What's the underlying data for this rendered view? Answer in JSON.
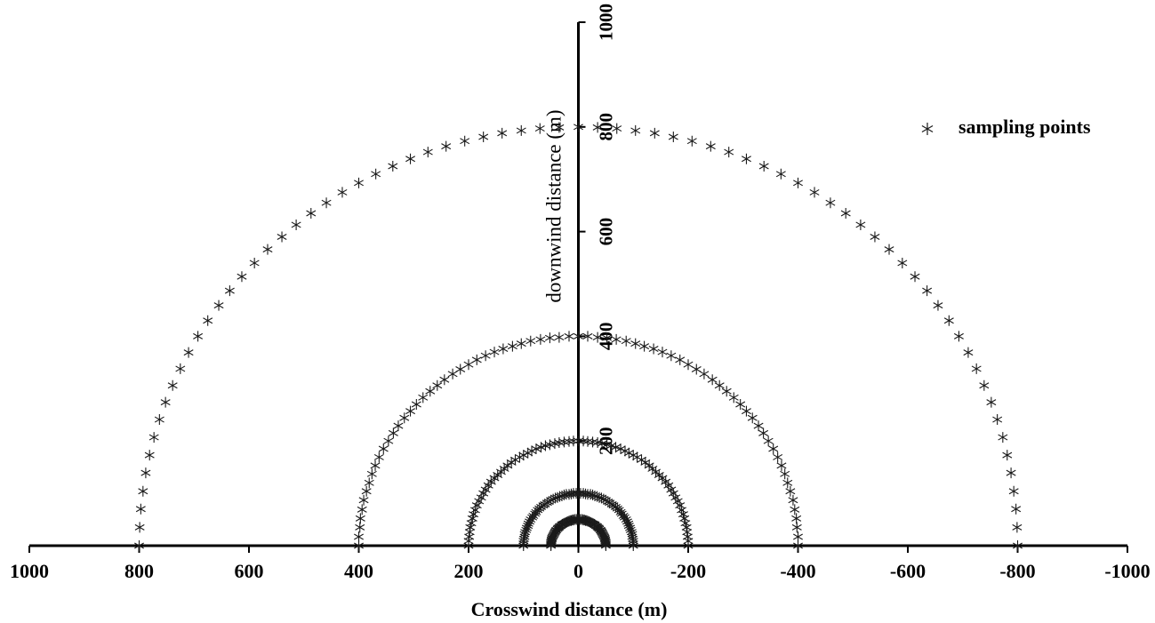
{
  "chart_data": {
    "type": "scatter",
    "xlabel": "Crosswind distance (m)",
    "ylabel": "downwind distance (m)",
    "xlim": [
      1000,
      -1000
    ],
    "ylim": [
      0,
      1000
    ],
    "xticks": [
      1000,
      800,
      600,
      400,
      200,
      0,
      -200,
      -400,
      -600,
      -800,
      -1000
    ],
    "yticks": [
      200,
      400,
      600,
      800,
      1000
    ],
    "legend": "upper right",
    "series": [
      {
        "name": "sampling points",
        "color": "#1a1a1a",
        "marker": "asterisk",
        "x": [
          800,
          799,
          797,
          793,
          788,
          781,
          773,
          763,
          752,
          739,
          725,
          710,
          693,
          675,
          655,
          635,
          613,
          590,
          566,
          540,
          514,
          487,
          459,
          430,
          400,
          369,
          338,
          306,
          274,
          241,
          207,
          173,
          139,
          104,
          70,
          35,
          0,
          -35,
          -70,
          -104,
          -139,
          -173,
          -207,
          -241,
          -274,
          -306,
          -338,
          -369,
          -400,
          -430,
          -459,
          -487,
          -514,
          -540,
          -566,
          -590,
          -613,
          -635,
          -655,
          -675,
          -693,
          -710,
          -725,
          -739,
          -752,
          -763,
          -773,
          -781,
          -788,
          -793,
          -797,
          -799,
          -800,
          400,
          400,
          398,
          397,
          394,
          391,
          386,
          381,
          376,
          370,
          363,
          355,
          346,
          337,
          328,
          317,
          306,
          295,
          283,
          270,
          257,
          244,
          229,
          215,
          200,
          185,
          169,
          153,
          137,
          120,
          104,
          87,
          69,
          52,
          35,
          17,
          0,
          -17,
          -35,
          -52,
          -69,
          -87,
          -104,
          -120,
          -137,
          -153,
          -169,
          -185,
          -200,
          -215,
          -229,
          -244,
          -257,
          -270,
          -283,
          -295,
          -306,
          -317,
          -328,
          -337,
          -346,
          -355,
          -363,
          -370,
          -376,
          -381,
          -386,
          -391,
          -394,
          -397,
          -398,
          -400,
          -400,
          200,
          200,
          199,
          198,
          197,
          195,
          193,
          191,
          188,
          185,
          181,
          177,
          173,
          169,
          164,
          159,
          153,
          147,
          141,
          135,
          129,
          122,
          115,
          107,
          100,
          92,
          85,
          77,
          68,
          60,
          52,
          43,
          35,
          26,
          17,
          9,
          0,
          -9,
          -17,
          -26,
          -35,
          -43,
          -52,
          -60,
          -68,
          -77,
          -85,
          -92,
          -100,
          -107,
          -115,
          -122,
          -129,
          -135,
          -141,
          -147,
          -153,
          -159,
          -164,
          -169,
          -173,
          -177,
          -181,
          -185,
          -188,
          -191,
          -193,
          -195,
          -197,
          -198,
          -199,
          -200,
          -200,
          100,
          100,
          100,
          99,
          98,
          98,
          97,
          95,
          94,
          92,
          91,
          89,
          87,
          84,
          82,
          79,
          77,
          74,
          71,
          68,
          64,
          61,
          57,
          54,
          50,
          46,
          42,
          38,
          34,
          30,
          26,
          22,
          17,
          13,
          9,
          4,
          0,
          -4,
          -9,
          -13,
          -17,
          -22,
          -26,
          -30,
          -34,
          -38,
          -42,
          -46,
          -50,
          -54,
          -57,
          -61,
          -64,
          -68,
          -71,
          -74,
          -77,
          -79,
          -82,
          -84,
          -87,
          -89,
          -91,
          -92,
          -94,
          -95,
          -97,
          -98,
          -98,
          -99,
          -100,
          -100,
          -100,
          50,
          50,
          50,
          50,
          49,
          49,
          48,
          48,
          47,
          46,
          45,
          44,
          43,
          42,
          41,
          40,
          38,
          37,
          35,
          34,
          32,
          30,
          29,
          27,
          25,
          23,
          21,
          19,
          17,
          15,
          13,
          11,
          9,
          7,
          4,
          2,
          0,
          -2,
          -4,
          -7,
          -9,
          -11,
          -13,
          -15,
          -17,
          -19,
          -21,
          -23,
          -25,
          -27,
          -29,
          -30,
          -32,
          -34,
          -35,
          -37,
          -38,
          -40,
          -41,
          -42,
          -43,
          -44,
          -45,
          -46,
          -47,
          -48,
          -48,
          -49,
          -49,
          -50,
          -50,
          -50,
          -50
        ],
        "y": [
          0,
          35,
          70,
          104,
          139,
          173,
          207,
          241,
          274,
          306,
          338,
          369,
          400,
          430,
          459,
          487,
          514,
          540,
          566,
          590,
          613,
          635,
          655,
          675,
          693,
          710,
          725,
          739,
          752,
          763,
          773,
          781,
          788,
          793,
          797,
          799,
          800,
          799,
          797,
          793,
          788,
          781,
          773,
          763,
          752,
          739,
          725,
          710,
          693,
          675,
          655,
          635,
          613,
          590,
          566,
          540,
          514,
          487,
          459,
          430,
          400,
          369,
          338,
          306,
          274,
          241,
          207,
          173,
          139,
          104,
          70,
          35,
          0,
          0,
          17,
          35,
          52,
          69,
          87,
          104,
          120,
          137,
          153,
          169,
          185,
          200,
          215,
          229,
          244,
          257,
          270,
          283,
          295,
          306,
          317,
          328,
          337,
          346,
          355,
          363,
          370,
          376,
          381,
          386,
          391,
          394,
          397,
          398,
          400,
          400,
          400,
          398,
          397,
          394,
          391,
          386,
          381,
          376,
          370,
          363,
          355,
          346,
          337,
          328,
          317,
          306,
          295,
          283,
          270,
          257,
          244,
          229,
          215,
          200,
          185,
          169,
          153,
          137,
          120,
          104,
          87,
          69,
          52,
          35,
          17,
          0,
          0,
          9,
          17,
          26,
          35,
          43,
          52,
          60,
          68,
          77,
          85,
          92,
          100,
          107,
          115,
          122,
          129,
          135,
          141,
          147,
          153,
          159,
          164,
          169,
          173,
          177,
          181,
          185,
          188,
          191,
          193,
          195,
          197,
          198,
          199,
          200,
          200,
          200,
          199,
          198,
          197,
          195,
          193,
          191,
          188,
          185,
          181,
          177,
          173,
          169,
          164,
          159,
          153,
          147,
          141,
          135,
          129,
          122,
          115,
          107,
          100,
          92,
          85,
          77,
          68,
          60,
          52,
          43,
          35,
          26,
          17,
          9,
          0,
          0,
          4,
          9,
          13,
          17,
          22,
          26,
          30,
          34,
          38,
          42,
          46,
          50,
          54,
          57,
          61,
          64,
          68,
          71,
          74,
          77,
          79,
          82,
          84,
          87,
          89,
          91,
          92,
          94,
          95,
          97,
          98,
          98,
          99,
          100,
          100,
          100,
          100,
          100,
          99,
          98,
          98,
          97,
          95,
          94,
          92,
          91,
          89,
          87,
          84,
          82,
          79,
          77,
          74,
          71,
          68,
          64,
          61,
          57,
          54,
          50,
          46,
          42,
          38,
          34,
          30,
          26,
          22,
          17,
          13,
          9,
          4,
          0,
          0,
          2,
          4,
          7,
          9,
          11,
          13,
          15,
          17,
          19,
          21,
          23,
          25,
          27,
          29,
          30,
          32,
          34,
          35,
          37,
          38,
          40,
          41,
          42,
          43,
          44,
          45,
          46,
          47,
          48,
          48,
          49,
          49,
          50,
          50,
          50,
          50,
          50,
          50,
          50,
          49,
          49,
          48,
          48,
          47,
          46,
          45,
          44,
          43,
          42,
          41,
          40,
          38,
          37,
          35,
          34,
          32,
          30,
          29,
          27,
          25,
          23,
          21,
          19,
          17,
          15,
          13,
          11,
          9,
          7,
          4,
          2,
          0
        ]
      }
    ]
  }
}
